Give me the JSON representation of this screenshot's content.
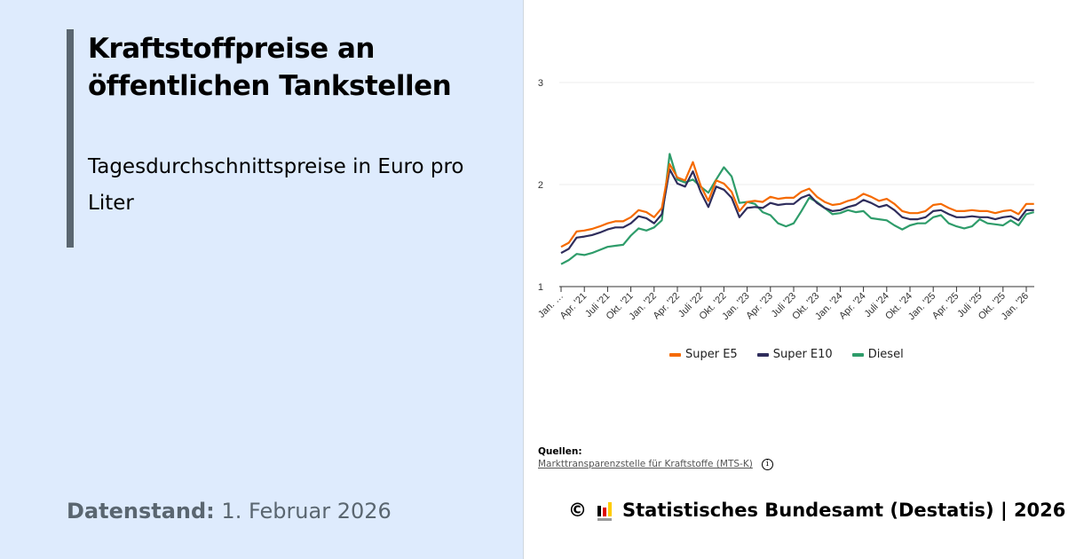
{
  "left": {
    "title": "Kraftstoffpreise an öffentlichen Tankstellen",
    "subtitle": "Tagesdurchschnittspreise in Euro pro Liter",
    "datenstand_label": "Datenstand:",
    "datenstand_value": "1. Februar 2026"
  },
  "chart_data": {
    "type": "line",
    "title": "",
    "xlabel": "",
    "ylabel": "",
    "ylim": [
      1,
      3
    ],
    "yticks": [
      "1",
      "2",
      "3"
    ],
    "grid": "horizontal",
    "legend_position": "bottom",
    "xticks": [
      "Jan. '21",
      "Apr. '21",
      "Juli '21",
      "Okt. '21",
      "Jan. '22",
      "Apr. '22",
      "Juli '22",
      "Okt. '22",
      "Jan. '23",
      "Apr. '23",
      "Juli '23",
      "Okt. '23",
      "Jan. '24",
      "Apr. '24",
      "Juli '24",
      "Okt. '24",
      "Jan. '25",
      "Apr. '25",
      "Juli '25",
      "Okt. '25",
      "Jan. '26"
    ],
    "xtick_labels_display": [
      "Jan. …",
      "Apr. '21",
      "Juli '21",
      "Okt. '21",
      "Jan. '22",
      "Apr. '22",
      "Juli '22",
      "Okt. '22",
      "Jan. '23",
      "Apr. '23",
      "Juli '23",
      "Okt. '23",
      "Jan. '24",
      "Apr. '24",
      "Juli '24",
      "Okt. '24",
      "Jan. '25",
      "Apr. '25",
      "Juli '25",
      "Okt. '25",
      "Jan. '26"
    ],
    "x": [
      "2021-01",
      "2021-02",
      "2021-03",
      "2021-04",
      "2021-05",
      "2021-06",
      "2021-07",
      "2021-08",
      "2021-09",
      "2021-10",
      "2021-11",
      "2021-12",
      "2022-01",
      "2022-02",
      "2022-03",
      "2022-04",
      "2022-05",
      "2022-06",
      "2022-07",
      "2022-08",
      "2022-09",
      "2022-10",
      "2022-11",
      "2022-12",
      "2023-01",
      "2023-02",
      "2023-03",
      "2023-04",
      "2023-05",
      "2023-06",
      "2023-07",
      "2023-08",
      "2023-09",
      "2023-10",
      "2023-11",
      "2023-12",
      "2024-01",
      "2024-02",
      "2024-03",
      "2024-04",
      "2024-05",
      "2024-06",
      "2024-07",
      "2024-08",
      "2024-09",
      "2024-10",
      "2024-11",
      "2024-12",
      "2025-01",
      "2025-02",
      "2025-03",
      "2025-04",
      "2025-05",
      "2025-06",
      "2025-07",
      "2025-08",
      "2025-09",
      "2025-10",
      "2025-11",
      "2025-12",
      "2026-01",
      "2026-02"
    ],
    "series": [
      {
        "name": "Super E5",
        "color": "#f56a00",
        "values": [
          1.39,
          1.43,
          1.54,
          1.55,
          1.565,
          1.59,
          1.62,
          1.64,
          1.64,
          1.68,
          1.75,
          1.73,
          1.68,
          1.77,
          2.2,
          2.07,
          2.04,
          2.22,
          1.99,
          1.84,
          2.04,
          2.01,
          1.93,
          1.74,
          1.83,
          1.84,
          1.83,
          1.88,
          1.86,
          1.87,
          1.87,
          1.93,
          1.96,
          1.88,
          1.83,
          1.8,
          1.81,
          1.84,
          1.86,
          1.91,
          1.88,
          1.84,
          1.86,
          1.81,
          1.74,
          1.72,
          1.72,
          1.74,
          1.8,
          1.81,
          1.77,
          1.74,
          1.74,
          1.75,
          1.74,
          1.74,
          1.72,
          1.74,
          1.75,
          1.71,
          1.81,
          1.81
        ]
      },
      {
        "name": "Super E10",
        "color": "#2f2d5c",
        "values": [
          1.33,
          1.37,
          1.48,
          1.49,
          1.505,
          1.53,
          1.56,
          1.58,
          1.58,
          1.62,
          1.69,
          1.67,
          1.62,
          1.71,
          2.15,
          2.01,
          1.98,
          2.13,
          1.93,
          1.78,
          1.98,
          1.95,
          1.87,
          1.68,
          1.77,
          1.78,
          1.77,
          1.82,
          1.8,
          1.81,
          1.81,
          1.87,
          1.9,
          1.82,
          1.77,
          1.74,
          1.75,
          1.78,
          1.8,
          1.85,
          1.82,
          1.78,
          1.8,
          1.75,
          1.68,
          1.66,
          1.66,
          1.68,
          1.74,
          1.75,
          1.71,
          1.68,
          1.68,
          1.69,
          1.68,
          1.68,
          1.66,
          1.68,
          1.69,
          1.65,
          1.75,
          1.75
        ]
      },
      {
        "name": "Diesel",
        "color": "#2e9c6a",
        "values": [
          1.22,
          1.26,
          1.32,
          1.31,
          1.33,
          1.36,
          1.39,
          1.4,
          1.41,
          1.5,
          1.57,
          1.55,
          1.58,
          1.65,
          2.3,
          2.05,
          2.02,
          2.05,
          1.98,
          1.92,
          2.05,
          2.17,
          2.08,
          1.82,
          1.83,
          1.81,
          1.73,
          1.7,
          1.62,
          1.59,
          1.62,
          1.74,
          1.87,
          1.83,
          1.77,
          1.71,
          1.72,
          1.75,
          1.73,
          1.74,
          1.67,
          1.66,
          1.65,
          1.6,
          1.56,
          1.6,
          1.62,
          1.62,
          1.68,
          1.7,
          1.62,
          1.59,
          1.57,
          1.59,
          1.66,
          1.62,
          1.61,
          1.6,
          1.65,
          1.6,
          1.71,
          1.73
        ]
      }
    ]
  },
  "sources": {
    "heading": "Quellen:",
    "link": "Markttransparenzstelle für Kraftstoffe (MTS-K)",
    "info_icon": "i"
  },
  "footer": {
    "copyright": "©",
    "text": "Statistisches Bundesamt (Destatis) | 2026",
    "logo_colors": [
      "#000000",
      "#dd0000",
      "#ffcc00"
    ]
  }
}
